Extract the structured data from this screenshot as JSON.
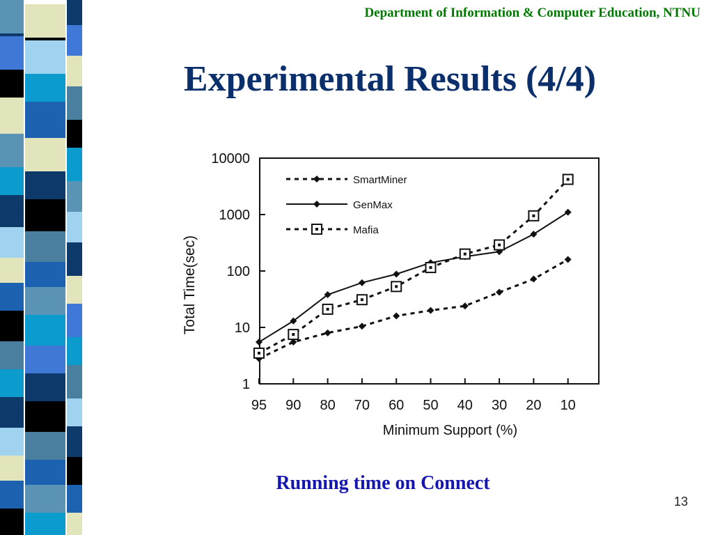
{
  "header": {
    "department": "Department of Information & Computer Education, NTNU"
  },
  "title": "Experimental Results (4/4)",
  "caption": "Running time on Connect",
  "page_number": "13",
  "decoration": {
    "palette": [
      "#0d3a6b",
      "#5b93b5",
      "#3f78d6",
      "#000000",
      "#e2e4bc",
      "#9fd3f0",
      "#0b9bcd",
      "#1d62b0",
      "#4a7fa0"
    ]
  },
  "chart_data": {
    "type": "line",
    "xlabel": "Minimum Support (%)",
    "ylabel": "Total Time(sec)",
    "categories": [
      "95",
      "90",
      "80",
      "70",
      "60",
      "50",
      "40",
      "30",
      "20",
      "10"
    ],
    "yscale": "log",
    "ylim": [
      1,
      10000
    ],
    "ytick_labels": [
      "1",
      "10",
      "100",
      "1000",
      "10000"
    ],
    "grid": false,
    "legend_position": "top-left",
    "series": [
      {
        "name": "SmartMiner",
        "style": "dashed",
        "marker": "diamond",
        "values": [
          2.8,
          5.5,
          8,
          10.5,
          16,
          20,
          24,
          42,
          72,
          160
        ]
      },
      {
        "name": "GenMax",
        "style": "solid",
        "marker": "diamond",
        "values": [
          5.5,
          13,
          38,
          62,
          88,
          140,
          180,
          220,
          450,
          1100
        ]
      },
      {
        "name": "Mafia",
        "style": "dashed",
        "marker": "square",
        "values": [
          3.5,
          7.5,
          21,
          31,
          53,
          115,
          200,
          290,
          950,
          4200
        ]
      }
    ]
  }
}
